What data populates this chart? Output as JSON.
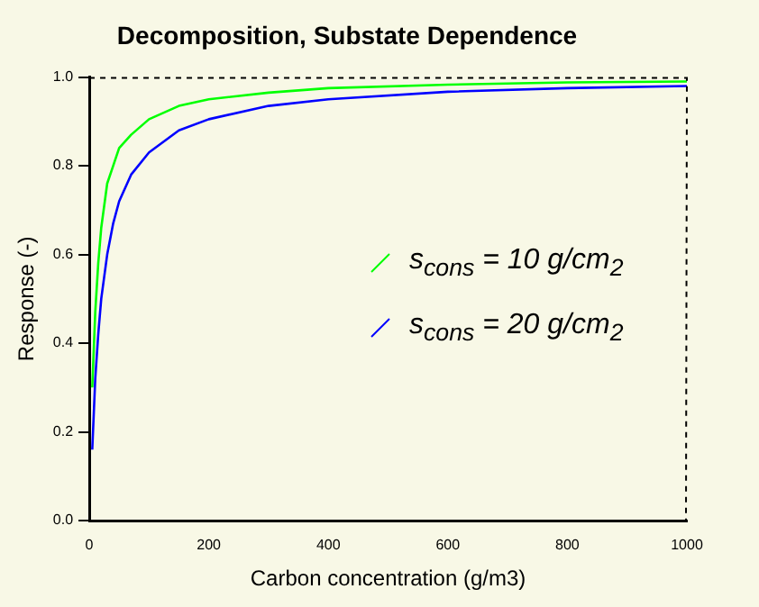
{
  "chart_data": {
    "type": "line",
    "title": "Decomposition, Substate Dependence",
    "xlabel": "Carbon concentration (g/m3)",
    "ylabel": "Response (-)",
    "xlim": [
      0,
      1000
    ],
    "xticks": [
      0,
      200,
      400,
      600,
      800,
      1000
    ],
    "ylim": [
      0,
      1
    ],
    "yticks": [
      {
        "value": 0,
        "label": "0.0"
      },
      {
        "value": 0.2,
        "label": "0.2"
      },
      {
        "value": 0.4,
        "label": "0.4"
      },
      {
        "value": 0.6,
        "label": "0.6"
      },
      {
        "value": 0.8,
        "label": "0.8"
      },
      {
        "value": 1,
        "label": "1.0"
      }
    ],
    "grid": false,
    "legend": "right",
    "marker": "none",
    "series": [
      {
        "name": "s$_{cons}$ = 10 g/cm$_{2}$",
        "color": "#00ff00",
        "x": [
          5,
          10,
          15,
          20,
          30,
          40,
          50,
          70,
          100,
          150,
          200,
          300,
          400,
          600,
          800,
          1000
        ],
        "values": [
          0.3,
          0.47,
          0.58,
          0.66,
          0.76,
          0.8,
          0.84,
          0.87,
          0.905,
          0.935,
          0.95,
          0.965,
          0.975,
          0.983,
          0.988,
          0.99
        ]
      },
      {
        "name": "s$_{cons}$ = 20 g/cm$_{2}$",
        "color": "#0000ff",
        "x": [
          5,
          10,
          15,
          20,
          30,
          40,
          50,
          70,
          100,
          150,
          200,
          300,
          400,
          600,
          800,
          1000
        ],
        "values": [
          0.16,
          0.32,
          0.42,
          0.5,
          0.6,
          0.67,
          0.72,
          0.78,
          0.83,
          0.88,
          0.905,
          0.935,
          0.95,
          0.967,
          0.975,
          0.98
        ]
      }
    ]
  }
}
